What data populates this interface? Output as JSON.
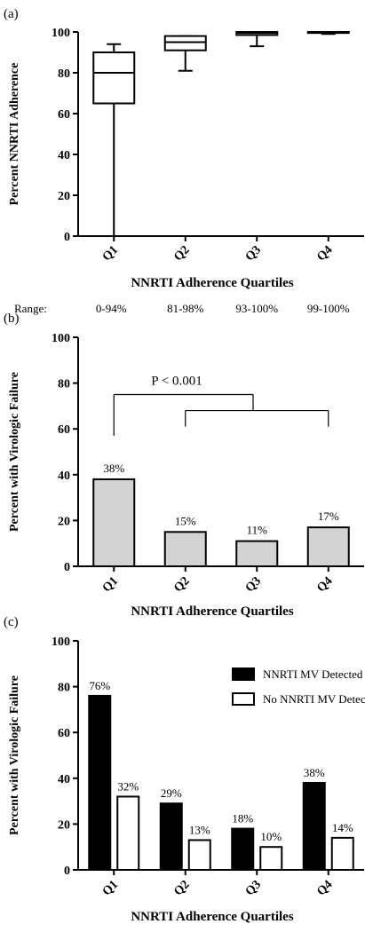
{
  "chart_data": [
    {
      "panel": "(a)",
      "type": "box",
      "ylabel": "Percent NNRTI Adherence",
      "xlabel": "NNRTI Adherence Quartiles",
      "ylim": [
        0,
        100
      ],
      "yticks": [
        "0",
        "20",
        "40",
        "60",
        "80",
        "100"
      ],
      "categories": [
        "Q1",
        "Q2",
        "Q3",
        "Q4"
      ],
      "boxes": [
        {
          "min": 0,
          "q1": 65,
          "median": 80,
          "q3": 90,
          "max": 94
        },
        {
          "min": 81,
          "q1": 91,
          "median": 95,
          "q3": 98,
          "max": 98
        },
        {
          "min": 93,
          "q1": 98.5,
          "median": 99.5,
          "q3": 100,
          "max": 100
        },
        {
          "min": 99,
          "q1": 99.5,
          "median": 100,
          "q3": 100,
          "max": 100
        }
      ],
      "range_label": "Range:",
      "ranges": [
        "0-94%",
        "81-98%",
        "93-100%",
        "99-100%"
      ]
    },
    {
      "panel": "(b)",
      "type": "bar",
      "ylabel": "Percent with Virologic Failure",
      "xlabel": "NNRTI Adherence Quartiles",
      "ylim": [
        0,
        100
      ],
      "yticks": [
        "0",
        "20",
        "40",
        "60",
        "80",
        "100"
      ],
      "categories": [
        "Q1",
        "Q2",
        "Q3",
        "Q4"
      ],
      "values": [
        38,
        15,
        11,
        17
      ],
      "labels": [
        "38%",
        "15%",
        "11%",
        "17%"
      ],
      "bar_color": "#d3d3d3",
      "annotation": "P < 0.001"
    },
    {
      "panel": "(c)",
      "type": "bar",
      "ylabel": "Percent with Virologic Failure",
      "xlabel": "NNRTI Adherence Quartiles",
      "ylim": [
        0,
        100
      ],
      "yticks": [
        "0",
        "20",
        "40",
        "60",
        "80",
        "100"
      ],
      "categories": [
        "Q1",
        "Q2",
        "Q3",
        "Q4"
      ],
      "legend_position": "top-right",
      "series": [
        {
          "name": "NNRTI MV Detected",
          "color": "#000000",
          "values": [
            76,
            29,
            18,
            38
          ],
          "labels": [
            "76%",
            "29%",
            "18%",
            "38%"
          ]
        },
        {
          "name": "No NNRTI MV Detected",
          "color": "#ffffff",
          "values": [
            32,
            13,
            10,
            14
          ],
          "labels": [
            "32%",
            "13%",
            "10%",
            "14%"
          ]
        }
      ]
    }
  ]
}
